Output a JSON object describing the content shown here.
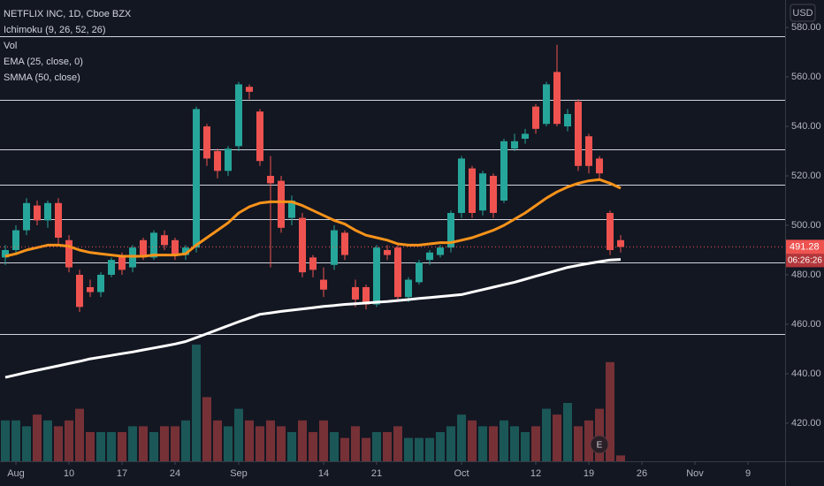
{
  "chart_data": {
    "type": "candlestick",
    "title": "NETFLIX INC, 1D, Cboe BZX",
    "ichimoku_label": "Ichimoku (9, 26, 52, 26)",
    "currency": "USD",
    "countdown": "06:26:26",
    "up_color": "#26a69a",
    "down_color": "#ef5350",
    "open": [
      487,
      490,
      498,
      508,
      502,
      509,
      494,
      480,
      475,
      473,
      480,
      488,
      483,
      494,
      487,
      496,
      494,
      488,
      491,
      540,
      530,
      522,
      532,
      556,
      546,
      520,
      518,
      503,
      503,
      487,
      478,
      484,
      497,
      475,
      475,
      468,
      490,
      491,
      471,
      477,
      486,
      488,
      491,
      505,
      523,
      506,
      520,
      510,
      531,
      535,
      548,
      541,
      562,
      540,
      550,
      536,
      527,
      505,
      494
    ],
    "high": [
      492,
      500,
      511,
      510,
      510,
      511,
      496,
      482,
      478,
      481,
      487,
      489,
      492,
      495,
      498,
      498,
      495,
      492,
      548,
      541,
      531,
      532,
      558,
      557,
      547,
      528,
      520,
      512,
      505,
      488,
      483,
      500,
      498,
      478,
      476,
      492,
      492,
      493,
      479,
      486,
      490,
      492,
      506,
      528,
      524,
      522,
      521,
      535,
      537,
      539,
      549,
      558,
      573,
      547,
      551,
      537,
      528,
      506,
      496
    ],
    "low": [
      484,
      488,
      496,
      500,
      499,
      492,
      481,
      465,
      471,
      471,
      479,
      480,
      481,
      486,
      486,
      490,
      486,
      486,
      489,
      524,
      519,
      520,
      530,
      551,
      524,
      483,
      497,
      500,
      479,
      479,
      471,
      482,
      486,
      467,
      466,
      467,
      486,
      470,
      469,
      476,
      484,
      487,
      489,
      503,
      503,
      504,
      503,
      509,
      530,
      533,
      537,
      540,
      540,
      538,
      522,
      521,
      518,
      488,
      489
    ],
    "close": [
      490,
      498,
      509,
      502,
      509,
      495,
      483,
      467,
      473,
      480,
      486,
      482,
      491,
      487,
      497,
      492,
      488,
      491,
      547,
      527,
      522,
      531,
      557,
      554,
      526,
      517,
      499,
      510,
      481,
      482,
      474,
      498,
      488,
      470,
      468,
      491,
      488,
      471,
      478,
      485,
      489,
      491,
      505,
      527,
      505,
      521,
      505,
      534,
      534,
      537,
      539,
      557,
      541,
      545,
      524,
      524,
      521,
      490,
      491.28
    ],
    "volume": {
      "name": "Vol",
      "values": [
        7,
        7,
        6,
        8,
        7,
        6,
        7,
        9,
        5,
        5,
        5,
        5,
        6,
        6,
        5,
        6,
        6,
        7,
        20,
        11,
        7,
        6,
        9,
        7,
        6,
        7,
        6,
        5,
        7,
        5,
        7,
        5,
        4,
        6,
        4,
        5,
        5,
        6,
        4,
        4,
        4,
        5,
        6,
        8,
        7,
        6,
        6,
        7,
        6,
        5,
        6,
        9,
        8,
        10,
        6,
        7,
        9,
        17,
        1
      ]
    },
    "series": [
      {
        "name": "EMA (25, close, 0)",
        "color": "#f7931a",
        "values": [
          487.5,
          488.5,
          490,
          491,
          492,
          492,
          491.5,
          490,
          489,
          488.5,
          488,
          487.5,
          487.5,
          487.5,
          488,
          488,
          488,
          488.5,
          492,
          495,
          498,
          501,
          505,
          507.5,
          509,
          509.5,
          509.5,
          509.5,
          508,
          506,
          504,
          502,
          500.5,
          498,
          496,
          495,
          494,
          492.5,
          492,
          492,
          492.5,
          493,
          493,
          494,
          495,
          496.5,
          498,
          500,
          502.5,
          505,
          508,
          511,
          513.5,
          515.5,
          517,
          518,
          518.5,
          517,
          515
        ]
      },
      {
        "name": "SMMA (50, close)",
        "color": "#ffffff",
        "values": [
          438.5,
          439.5,
          440.5,
          441.4,
          442.3,
          443.2,
          444.1,
          445,
          446,
          446.7,
          447.4,
          448.1,
          448.8,
          449.6,
          450.4,
          451.2,
          452,
          453,
          454.6,
          456.2,
          457.8,
          459.4,
          461,
          462.5,
          464,
          464.6,
          465.2,
          465.7,
          466.2,
          466.7,
          467.2,
          467.6,
          468,
          468.3,
          468.6,
          468.9,
          469.2,
          469.6,
          470,
          470.4,
          470.8,
          471.2,
          471.6,
          472,
          473,
          474,
          475,
          476,
          477,
          478.2,
          479.4,
          480.6,
          481.8,
          483,
          483.8,
          484.6,
          485.3,
          486,
          486.2
        ]
      }
    ],
    "levels": [
      576.4,
      550.7,
      530.7,
      516.4,
      502.5,
      485,
      456
    ],
    "earnings": {
      "label": "E",
      "x": 56
    },
    "xlim": [
      -0.5,
      73.5
    ],
    "xticks": [
      {
        "value": 1,
        "label": "Aug"
      },
      {
        "value": 6,
        "label": "10"
      },
      {
        "value": 11,
        "label": "17"
      },
      {
        "value": 16,
        "label": "24"
      },
      {
        "value": 22,
        "label": "Sep"
      },
      {
        "value": 30,
        "label": "14"
      },
      {
        "value": 35,
        "label": "21"
      },
      {
        "value": 43,
        "label": "Oct"
      },
      {
        "value": 50,
        "label": "12"
      },
      {
        "value": 55,
        "label": "19"
      },
      {
        "value": 60,
        "label": "26"
      },
      {
        "value": 65,
        "label": "Nov"
      },
      {
        "value": 70,
        "label": "9"
      }
    ],
    "ylim": [
      404.6,
      591.1
    ],
    "yticks": [
      {
        "value": 580,
        "label": "580.00"
      },
      {
        "value": 560,
        "label": "560.00"
      },
      {
        "value": 540,
        "label": "540.00"
      },
      {
        "value": 520,
        "label": "520.00"
      },
      {
        "value": 500,
        "label": "500.00"
      },
      {
        "value": 480,
        "label": "480.00"
      },
      {
        "value": 460,
        "label": "460.00"
      },
      {
        "value": 440,
        "label": "440.00"
      },
      {
        "value": 420,
        "label": "420.00"
      }
    ]
  }
}
